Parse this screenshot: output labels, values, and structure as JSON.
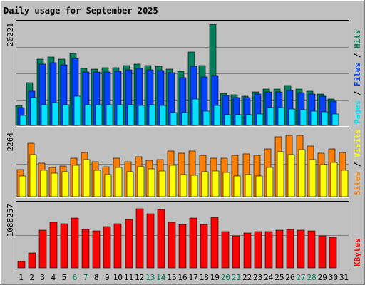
{
  "chart_data": {
    "type": "bar",
    "title": "Daily usage for September 2025",
    "categories": [
      "1",
      "2",
      "3",
      "4",
      "5",
      "6",
      "7",
      "8",
      "9",
      "10",
      "11",
      "12",
      "13",
      "14",
      "15",
      "16",
      "17",
      "18",
      "19",
      "20",
      "21",
      "22",
      "23",
      "24",
      "25",
      "26",
      "27",
      "28",
      "29",
      "30",
      "31"
    ],
    "weekend_days": [
      "6",
      "7",
      "13",
      "14",
      "20",
      "21",
      "27",
      "28"
    ],
    "colors": {
      "background": "#c0c0c0",
      "title": "#0000ff",
      "hits": "#00805c",
      "files": "#0040ff",
      "pages": "#00e0ff",
      "visits": "#ffff00",
      "sites": "#ff8000",
      "kbytes": "#ff0000",
      "weekend_label": "#00805c"
    },
    "panels": [
      {
        "name": "hits-files-pages",
        "ymax_label": "20221",
        "ymax": 20221,
        "legend": [
          {
            "text": "Pages",
            "color": "#00e0ff"
          },
          {
            "text": " / ",
            "color": "#000000"
          },
          {
            "text": "Files",
            "color": "#0040ff"
          },
          {
            "text": " / ",
            "color": "#000000"
          },
          {
            "text": "Hits",
            "color": "#00805c"
          }
        ],
        "series": [
          {
            "name": "Hits",
            "color": "#00805c",
            "values": [
              4000,
              8500,
              13200,
              13600,
              13200,
              14400,
              11400,
              11200,
              11600,
              11600,
              11900,
              12200,
              12000,
              11800,
              11200,
              10800,
              14600,
              12000,
              20221,
              6400,
              6100,
              5800,
              6700,
              7300,
              7300,
              8000,
              7300,
              6900,
              6200,
              5300,
              0
            ]
          },
          {
            "name": "Files",
            "color": "#0040ff",
            "values": [
              3500,
              6800,
              12200,
              12600,
              12100,
              13400,
              10700,
              10700,
              10700,
              10800,
              11100,
              11400,
              11100,
              11000,
              10600,
              9600,
              11800,
              9700,
              10000,
              6000,
              5600,
              5500,
              6200,
              6700,
              6700,
              7000,
              6600,
              6200,
              5800,
              4800,
              0
            ]
          },
          {
            "name": "Pages",
            "color": "#00e0ff",
            "values": [
              2000,
              5500,
              4200,
              4600,
              4100,
              5800,
              4200,
              4200,
              4200,
              4100,
              4100,
              4000,
              4200,
              4000,
              2600,
              2600,
              5300,
              2900,
              4000,
              2200,
              2200,
              2200,
              2300,
              3500,
              3500,
              3300,
              3100,
              2900,
              2700,
              2300,
              0
            ]
          }
        ]
      },
      {
        "name": "sites-visits",
        "ymax_label": "2264",
        "ymax": 2264,
        "legend": [
          {
            "text": "Sites",
            "color": "#ff8000"
          },
          {
            "text": " / ",
            "color": "#000000"
          },
          {
            "text": "Visits",
            "color": "#ffff00"
          }
        ],
        "series": [
          {
            "name": "Sites",
            "color": "#ff8000",
            "values": [
              970,
              1940,
              1200,
              1050,
              1100,
              1400,
              1600,
              1250,
              1080,
              1400,
              1250,
              1450,
              1320,
              1350,
              1650,
              1560,
              1650,
              1480,
              1380,
              1400,
              1500,
              1540,
              1500,
              1720,
              2150,
              2200,
              2210,
              1820,
              1580,
              1720,
              1600
            ]
          },
          {
            "name": "Visits",
            "color": "#ffff00",
            "values": [
              740,
              1530,
              960,
              850,
              910,
              1130,
              1340,
              940,
              800,
              1060,
              900,
              1080,
              1010,
              920,
              1140,
              800,
              760,
              900,
              920,
              870,
              740,
              800,
              750,
              1050,
              1620,
              1520,
              1690,
              1350,
              1150,
              1230,
              960
            ]
          }
        ]
      },
      {
        "name": "kbytes",
        "ymax_label": "1088257",
        "ymax": 1088257,
        "legend": [
          {
            "text": "KBytes",
            "color": "#ff0000"
          }
        ],
        "series": [
          {
            "name": "KBytes",
            "color": "#ff0000",
            "values": [
              110000,
              260000,
              660000,
              790000,
              770000,
              870000,
              670000,
              640000,
              720000,
              770000,
              840000,
              1030000,
              940000,
              1010000,
              790000,
              750000,
              860000,
              760000,
              880000,
              630000,
              560000,
              610000,
              630000,
              630000,
              660000,
              670000,
              660000,
              640000,
              560000,
              530000,
              0
            ]
          }
        ]
      }
    ]
  }
}
